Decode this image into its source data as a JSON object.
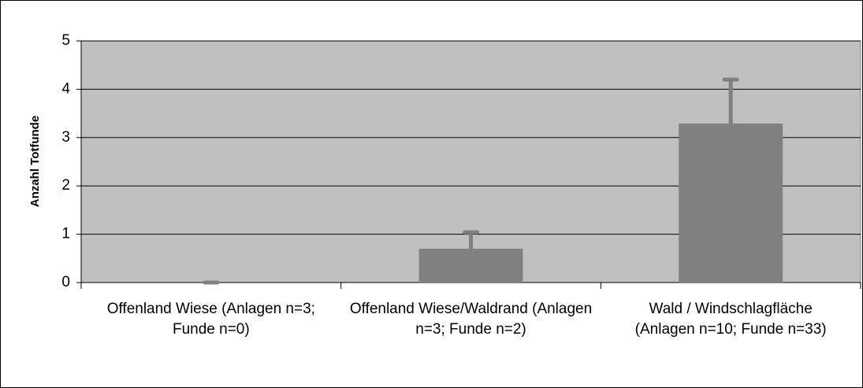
{
  "chart_data": {
    "type": "bar",
    "y_label": "Anzahl Totfunde",
    "categories": [
      "Offenland Wiese (Anlagen n=3; Funde n=0)",
      "Offenland Wiese/Waldrand (Anlagen n=3; Funde n=2)",
      "Wald / Windschlagfläche (Anlagen n=10; Funde n=33)"
    ],
    "values": [
      0,
      0.7,
      3.29
    ],
    "errors": [
      0,
      0.34,
      0.91
    ],
    "color": "#808080",
    "ylim": [
      0,
      5
    ],
    "yticks": [
      0,
      1,
      2,
      3,
      4,
      5
    ],
    "grid": true
  }
}
